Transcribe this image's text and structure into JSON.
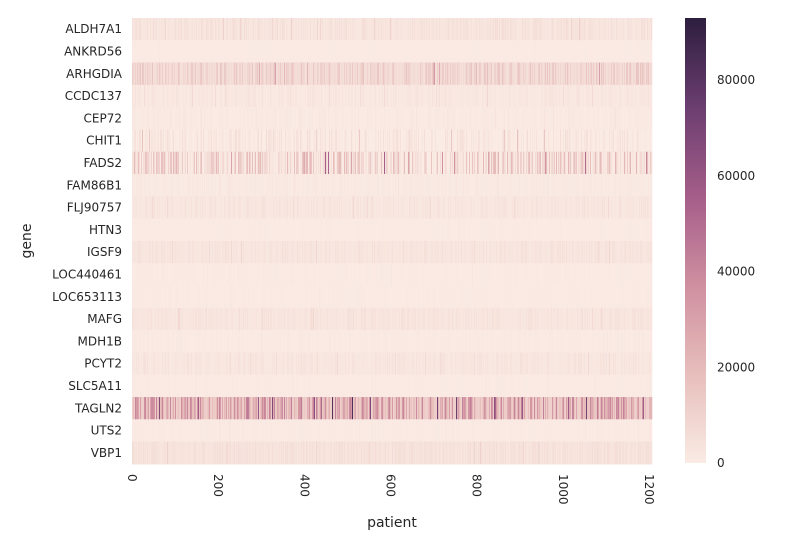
{
  "chart_data": {
    "type": "heatmap",
    "xlabel": "patient",
    "ylabel": "gene",
    "x_ticks": [
      0,
      200,
      400,
      600,
      800,
      1000,
      1200
    ],
    "x_range": [
      0,
      1207
    ],
    "genes": [
      {
        "name": "ALDH7A1",
        "level": 3000,
        "variation": 3500
      },
      {
        "name": "ANKRD56",
        "level": 300,
        "variation": 300
      },
      {
        "name": "ARHGDIA",
        "level": 8000,
        "variation": 10000
      },
      {
        "name": "CCDC137",
        "level": 1500,
        "variation": 2500
      },
      {
        "name": "CEP72",
        "level": 800,
        "variation": 1200
      },
      {
        "name": "CHIT1",
        "level": 800,
        "variation": 6000
      },
      {
        "name": "FADS2",
        "level": 6000,
        "variation": 20000
      },
      {
        "name": "FAM86B1",
        "level": 800,
        "variation": 1000
      },
      {
        "name": "FLJ90757",
        "level": 2000,
        "variation": 2500
      },
      {
        "name": "HTN3",
        "level": 400,
        "variation": 500
      },
      {
        "name": "IGSF9",
        "level": 2500,
        "variation": 3000
      },
      {
        "name": "LOC440461",
        "level": 500,
        "variation": 500
      },
      {
        "name": "LOC653113",
        "level": 500,
        "variation": 600
      },
      {
        "name": "MAFG",
        "level": 2500,
        "variation": 2500
      },
      {
        "name": "MDH1B",
        "level": 600,
        "variation": 800
      },
      {
        "name": "PCYT2",
        "level": 2000,
        "variation": 2500
      },
      {
        "name": "SLC5A11",
        "level": 400,
        "variation": 500
      },
      {
        "name": "TAGLN2",
        "level": 20000,
        "variation": 30000
      },
      {
        "name": "UTS2",
        "level": 500,
        "variation": 600
      },
      {
        "name": "VBP1",
        "level": 3500,
        "variation": 3000
      }
    ],
    "colorbar": {
      "min": 0,
      "max": 93000,
      "ticks": [
        0,
        20000,
        40000,
        60000,
        80000
      ],
      "colors": [
        "#faebe4",
        "#e7bebb",
        "#cf8fa0",
        "#a45d89",
        "#6b3e70",
        "#2d1e3e"
      ]
    }
  }
}
